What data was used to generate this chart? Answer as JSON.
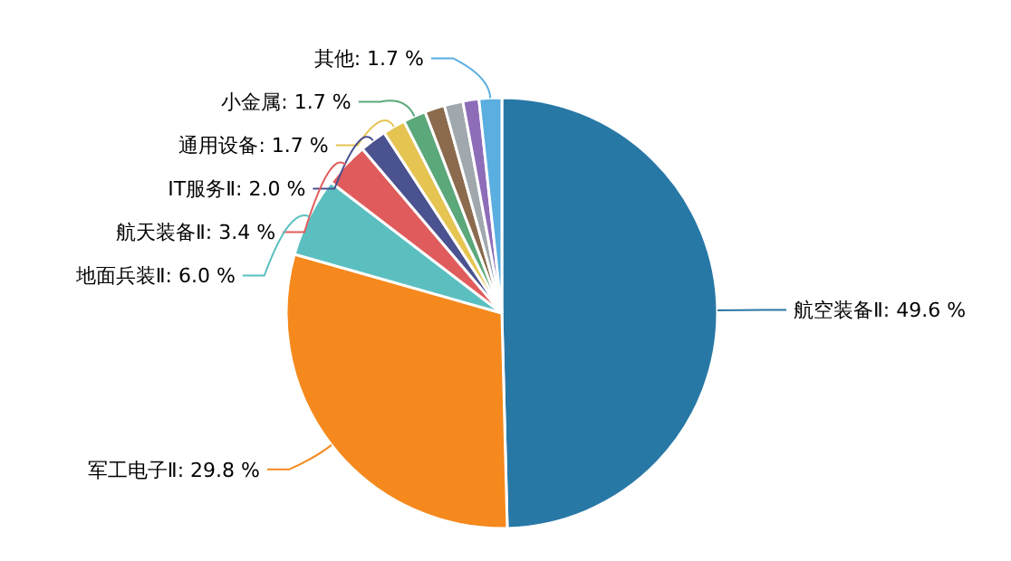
{
  "chart_data": {
    "type": "pie",
    "categories": [
      "航空装备Ⅱ",
      "军工电子Ⅱ",
      "地面兵装Ⅱ",
      "航天装备Ⅱ",
      "IT服务Ⅱ",
      "通用设备",
      "小金属",
      null,
      null,
      null,
      "其他"
    ],
    "values": [
      49.6,
      29.8,
      6.0,
      3.4,
      2.0,
      1.7,
      1.7,
      1.5,
      1.4,
      1.2,
      1.7
    ],
    "value_labels": [
      "49.6 %",
      "29.8 %",
      "6.0 %",
      "3.4 %",
      "2.0 %",
      "1.7 %",
      "1.7 %",
      null,
      null,
      null,
      "1.7 %"
    ],
    "colors": [
      "#2878a6",
      "#f5891d",
      "#5bbfc0",
      "#e05c5c",
      "#4a5290",
      "#e6c452",
      "#5ba87a",
      "#8b6a4e",
      "#a0a8ae",
      "#8d6cb8",
      "#5aaee0"
    ]
  }
}
